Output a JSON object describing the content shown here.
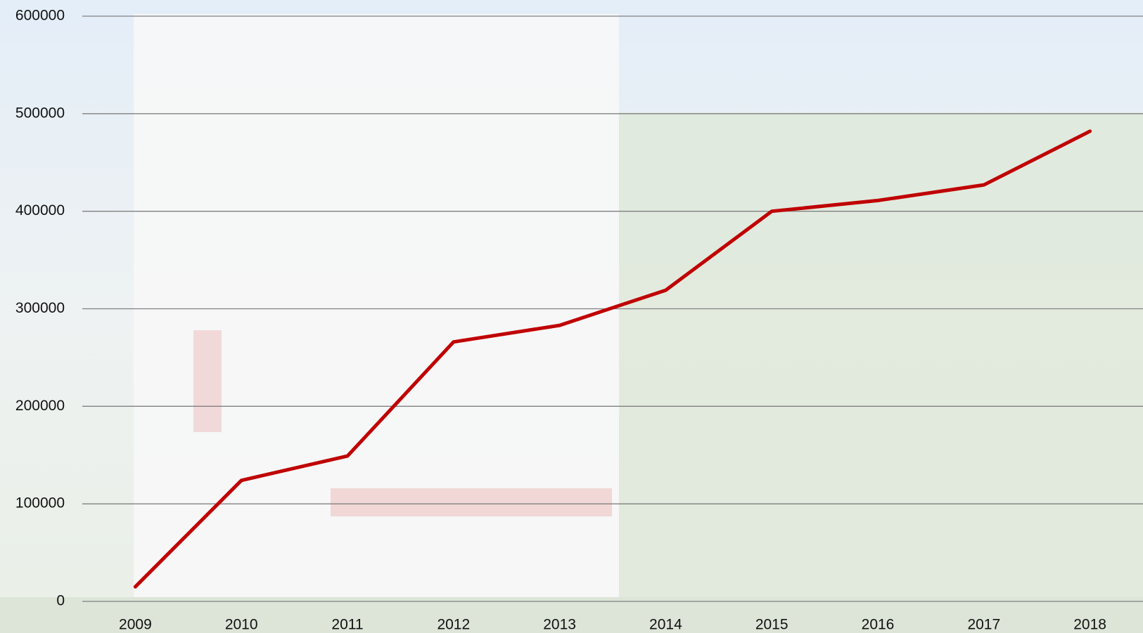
{
  "chart_data": {
    "type": "line",
    "categories": [
      "2009",
      "2010",
      "2011",
      "2012",
      "2013",
      "2014",
      "2015",
      "2016",
      "2017",
      "2018"
    ],
    "values": [
      15000,
      124000,
      149000,
      266000,
      283000,
      319000,
      400000,
      411000,
      427000,
      482000
    ],
    "color": "#c00000",
    "ylim": [
      0,
      600000
    ],
    "yticks": [
      0,
      100000,
      200000,
      300000,
      400000,
      500000,
      600000
    ],
    "grid": true
  }
}
